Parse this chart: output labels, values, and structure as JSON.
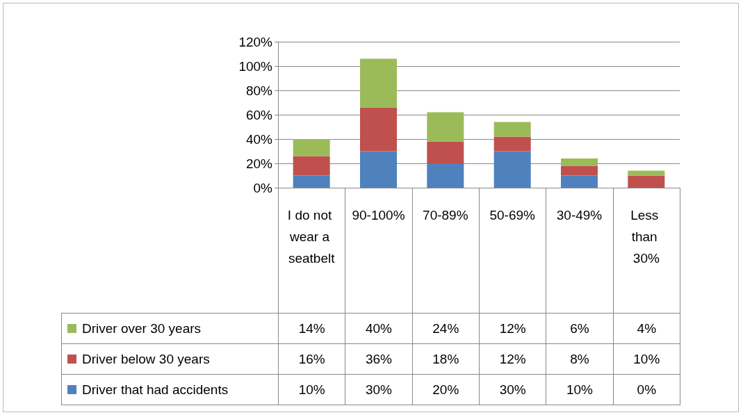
{
  "chart_data": {
    "type": "bar",
    "stacked": true,
    "categories": [
      "I do not wear a seatbelt",
      "90-100%",
      "70-89%",
      "50-69%",
      "30-49%",
      "Less than 30%"
    ],
    "series": [
      {
        "name": "Driver that had accidents",
        "color": "#4f81bd",
        "values": [
          10,
          30,
          20,
          30,
          10,
          0
        ],
        "value_labels": [
          "10%",
          "30%",
          "20%",
          "30%",
          "10%",
          "0%"
        ]
      },
      {
        "name": "Driver below 30 years",
        "color": "#c0504d",
        "values": [
          16,
          36,
          18,
          12,
          8,
          10
        ],
        "value_labels": [
          "16%",
          "36%",
          "18%",
          "12%",
          "8%",
          "10%"
        ]
      },
      {
        "name": "Driver over 30 years",
        "color": "#9bbb59",
        "values": [
          14,
          40,
          24,
          12,
          6,
          4
        ],
        "value_labels": [
          "14%",
          "40%",
          "24%",
          "12%",
          "6%",
          "4%"
        ]
      }
    ],
    "ylim": [
      0,
      120
    ],
    "yticks": [
      {
        "value": 0,
        "label": "0%"
      },
      {
        "value": 20,
        "label": "20%"
      },
      {
        "value": 40,
        "label": "40%"
      },
      {
        "value": 60,
        "label": "60%"
      },
      {
        "value": 80,
        "label": "80%"
      },
      {
        "value": 100,
        "label": "100%"
      },
      {
        "value": 120,
        "label": "120%"
      }
    ],
    "grid": "y",
    "legend": "bottom left"
  }
}
